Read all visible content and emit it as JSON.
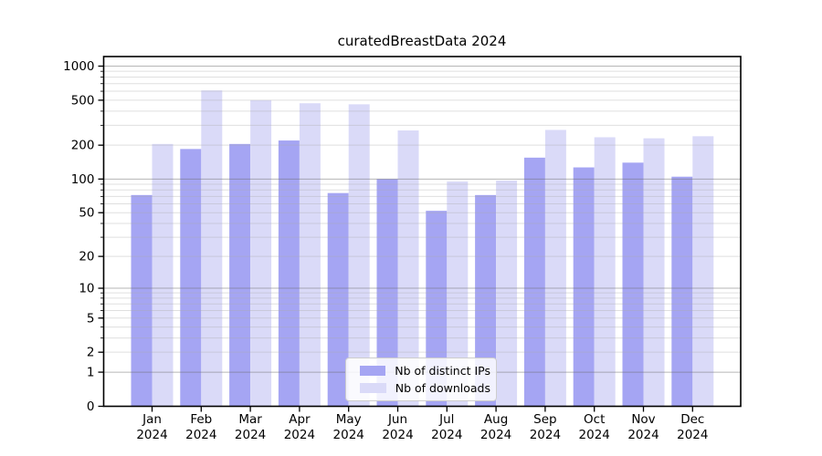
{
  "title": "curatedBreastData 2024",
  "colors": {
    "background": "#ffffff",
    "bar_dark": "#a5a5f3",
    "bar_light": "#dadaf8",
    "grid_major": "rgba(110,110,110,0.50)",
    "grid_minor": "rgba(170,170,170,0.38)",
    "axis": "#000000",
    "legend_border": "#cdcdcd"
  },
  "chart_data": {
    "type": "bar",
    "title": "curatedBreastData 2024",
    "categories": [
      "Jan 2024",
      "Feb 2024",
      "Mar 2024",
      "Apr 2024",
      "May 2024",
      "Jun 2024",
      "Jul 2024",
      "Aug 2024",
      "Sep 2024",
      "Oct 2024",
      "Nov 2024",
      "Dec 2024"
    ],
    "x_tick_line1": [
      "Jan",
      "Feb",
      "Mar",
      "Apr",
      "May",
      "Jun",
      "Jul",
      "Aug",
      "Sep",
      "Oct",
      "Nov",
      "Dec"
    ],
    "x_tick_line2": "2024",
    "series": [
      {
        "name": "Nb of distinct IPs",
        "color": "#a5a5f3",
        "values": [
          72,
          185,
          205,
          220,
          75,
          100,
          52,
          72,
          155,
          127,
          140,
          105
        ]
      },
      {
        "name": "Nb of downloads",
        "color": "#dadaf8",
        "values": [
          205,
          610,
          500,
          470,
          460,
          270,
          95,
          97,
          273,
          235,
          230,
          240
        ]
      }
    ],
    "y_axis": {
      "scale": "log10(value+1)",
      "range": [
        0,
        1000
      ],
      "ticks": [
        {
          "value": 0,
          "label": "0"
        },
        {
          "value": 1,
          "label": "1"
        },
        {
          "value": 2,
          "label": "2"
        },
        {
          "value": 5,
          "label": "5"
        },
        {
          "value": 10,
          "label": "10"
        },
        {
          "value": 20,
          "label": "20"
        },
        {
          "value": 50,
          "label": "50"
        },
        {
          "value": 100,
          "label": "100"
        },
        {
          "value": 200,
          "label": "200"
        },
        {
          "value": 500,
          "label": "500"
        },
        {
          "value": 1000,
          "label": "1000"
        }
      ],
      "major_gridlines": [
        1,
        10,
        100,
        1000
      ],
      "minor_gridlines": [
        2,
        3,
        4,
        5,
        6,
        7,
        8,
        9,
        20,
        30,
        40,
        50,
        60,
        70,
        80,
        90,
        200,
        300,
        400,
        500,
        600,
        700,
        800,
        900
      ]
    },
    "grid": "on",
    "legend_position": "inside-bottom-center"
  }
}
